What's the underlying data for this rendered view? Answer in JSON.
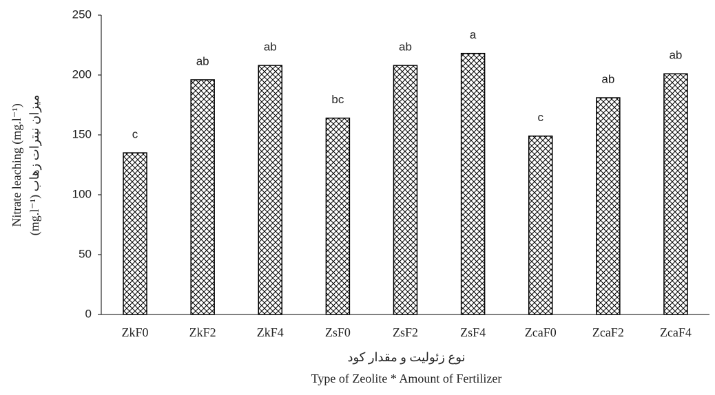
{
  "chart_data": {
    "type": "bar",
    "ylabel": "Nitrate leaching (mg.l⁻¹)",
    "ylabel_fa": "(mg.l⁻¹)  میزان نیترات زهاب",
    "xlabel_fa": "نوع زئولیت و مقدار کود",
    "xlabel": "Type of Zeolite * Amount of Fertilizer",
    "categories": [
      "ZkF0",
      "ZkF2",
      "ZkF4",
      "ZsF0",
      "ZsF2",
      "ZsF4",
      "ZcaF0",
      "ZcaF2",
      "ZcaF4"
    ],
    "values": [
      135,
      196,
      208,
      164,
      208,
      218,
      149,
      181,
      201
    ],
    "annotations": [
      "c",
      "ab",
      "ab",
      "bc",
      "ab",
      "a",
      "c",
      "ab",
      "ab"
    ],
    "color": "#000000",
    "ylim": [
      0,
      250
    ],
    "yticks": [
      0,
      50,
      100,
      150,
      200,
      250
    ],
    "grid": false
  }
}
